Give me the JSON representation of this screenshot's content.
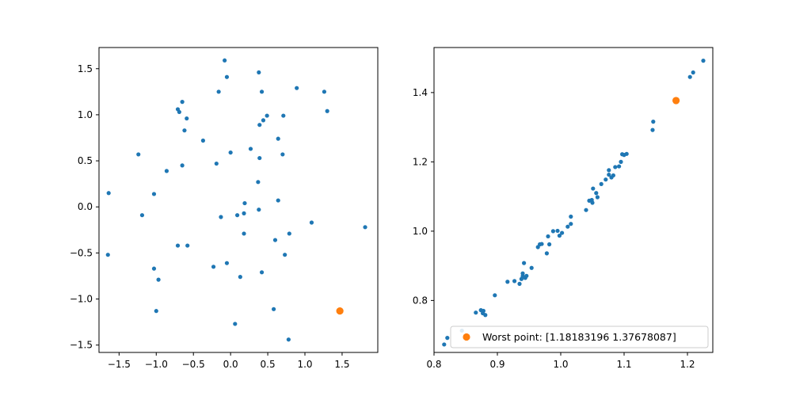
{
  "colors": {
    "points": "#1f77b4",
    "highlight": "#ff7f0e",
    "axes": "#000000",
    "background": "#ffffff"
  },
  "chart_data": [
    {
      "type": "scatter",
      "title": "",
      "xlabel": "",
      "ylabel": "",
      "xlim": [
        -1.77,
        1.98
      ],
      "ylim": [
        -1.58,
        1.73
      ],
      "grid": false,
      "legend": null,
      "xticks": [
        -1.5,
        -1.0,
        -0.5,
        0.0,
        0.5,
        1.0,
        1.5
      ],
      "xtick_labels": [
        "−1.5",
        "−1.0",
        "−0.5",
        "0.0",
        "0.5",
        "1.0",
        "1.5"
      ],
      "yticks": [
        -1.5,
        -1.0,
        -0.5,
        0.0,
        0.5,
        1.0,
        1.5
      ],
      "ytick_labels": [
        "−1.5",
        "−1.0",
        "−0.5",
        "0.0",
        "0.5",
        "1.0",
        "1.5"
      ],
      "series": [
        {
          "role": "points",
          "points": [
            [
              -0.08,
              1.59
            ],
            [
              0.38,
              1.46
            ],
            [
              -0.05,
              1.41
            ],
            [
              0.89,
              1.29
            ],
            [
              -0.16,
              1.25
            ],
            [
              0.42,
              1.25
            ],
            [
              1.26,
              1.25
            ],
            [
              -0.65,
              1.14
            ],
            [
              -0.71,
              1.06
            ],
            [
              -0.69,
              1.03
            ],
            [
              1.3,
              1.04
            ],
            [
              0.49,
              0.99
            ],
            [
              0.71,
              0.99
            ],
            [
              -0.59,
              0.96
            ],
            [
              0.44,
              0.94
            ],
            [
              0.39,
              0.89
            ],
            [
              -0.62,
              0.83
            ],
            [
              0.64,
              0.74
            ],
            [
              -0.37,
              0.72
            ],
            [
              0.27,
              0.63
            ],
            [
              0.0,
              0.59
            ],
            [
              -1.24,
              0.57
            ],
            [
              0.7,
              0.57
            ],
            [
              0.39,
              0.53
            ],
            [
              -0.19,
              0.47
            ],
            [
              -0.65,
              0.45
            ],
            [
              -0.86,
              0.39
            ],
            [
              0.37,
              0.27
            ],
            [
              -1.64,
              0.15
            ],
            [
              -1.03,
              0.14
            ],
            [
              0.64,
              0.07
            ],
            [
              0.19,
              0.04
            ],
            [
              0.38,
              -0.03
            ],
            [
              0.18,
              -0.07
            ],
            [
              -1.19,
              -0.09
            ],
            [
              0.09,
              -0.09
            ],
            [
              -0.13,
              -0.11
            ],
            [
              1.09,
              -0.17
            ],
            [
              1.81,
              -0.22
            ],
            [
              0.18,
              -0.29
            ],
            [
              0.79,
              -0.29
            ],
            [
              0.6,
              -0.36
            ],
            [
              -0.71,
              -0.42
            ],
            [
              -0.58,
              -0.42
            ],
            [
              -1.65,
              -0.52
            ],
            [
              0.73,
              -0.52
            ],
            [
              -0.05,
              -0.61
            ],
            [
              -0.23,
              -0.65
            ],
            [
              -1.03,
              -0.67
            ],
            [
              0.42,
              -0.71
            ],
            [
              0.13,
              -0.76
            ],
            [
              -0.97,
              -0.79
            ],
            [
              -1.0,
              -1.13
            ],
            [
              0.58,
              -1.11
            ],
            [
              0.06,
              -1.27
            ],
            [
              0.78,
              -1.44
            ]
          ]
        },
        {
          "role": "highlight",
          "points": [
            [
              1.47,
              -1.13
            ]
          ]
        }
      ]
    },
    {
      "type": "scatter",
      "title": "",
      "xlabel": "",
      "ylabel": "",
      "xlim": [
        0.8,
        1.24
      ],
      "ylim": [
        0.65,
        1.53
      ],
      "grid": false,
      "legend": "lower-right",
      "xticks": [
        0.8,
        0.9,
        1.0,
        1.1,
        1.2
      ],
      "xtick_labels": [
        "0.8",
        "0.9",
        "1.0",
        "1.1",
        "1.2"
      ],
      "yticks": [
        0.8,
        1.0,
        1.2,
        1.4
      ],
      "ytick_labels": [
        "0.8",
        "1.0",
        "1.2",
        "1.4"
      ],
      "series": [
        {
          "role": "points",
          "points": [
            [
              0.816,
              0.673
            ],
            [
              0.821,
              0.692
            ],
            [
              0.844,
              0.713
            ],
            [
              0.866,
              0.765
            ],
            [
              0.874,
              0.772
            ],
            [
              0.878,
              0.77
            ],
            [
              0.877,
              0.763
            ],
            [
              0.881,
              0.758
            ],
            [
              0.896,
              0.815
            ],
            [
              0.916,
              0.854
            ],
            [
              0.927,
              0.856
            ],
            [
              0.935,
              0.848
            ],
            [
              0.938,
              0.862
            ],
            [
              0.94,
              0.87
            ],
            [
              0.94,
              0.878
            ],
            [
              0.944,
              0.865
            ],
            [
              0.946,
              0.871
            ],
            [
              0.942,
              0.908
            ],
            [
              0.954,
              0.894
            ],
            [
              0.964,
              0.954
            ],
            [
              0.967,
              0.962
            ],
            [
              0.97,
              0.963
            ],
            [
              0.978,
              0.936
            ],
            [
              0.98,
              0.985
            ],
            [
              0.982,
              0.962
            ],
            [
              0.988,
              1.0
            ],
            [
              0.995,
              1.001
            ],
            [
              0.998,
              0.987
            ],
            [
              1.002,
              0.995
            ],
            [
              1.011,
              1.013
            ],
            [
              1.016,
              1.021
            ],
            [
              1.016,
              1.042
            ],
            [
              1.04,
              1.061
            ],
            [
              1.045,
              1.088
            ],
            [
              1.049,
              1.09
            ],
            [
              1.05,
              1.082
            ],
            [
              1.051,
              1.123
            ],
            [
              1.056,
              1.11
            ],
            [
              1.058,
              1.098
            ],
            [
              1.064,
              1.136
            ],
            [
              1.071,
              1.149
            ],
            [
              1.076,
              1.163
            ],
            [
              1.076,
              1.176
            ],
            [
              1.08,
              1.155
            ],
            [
              1.083,
              1.161
            ],
            [
              1.086,
              1.185
            ],
            [
              1.092,
              1.187
            ],
            [
              1.095,
              1.2
            ],
            [
              1.097,
              1.222
            ],
            [
              1.1,
              1.22
            ],
            [
              1.104,
              1.223
            ],
            [
              1.145,
              1.292
            ],
            [
              1.146,
              1.316
            ],
            [
              1.204,
              1.445
            ],
            [
              1.209,
              1.458
            ],
            [
              1.225,
              1.492
            ]
          ]
        },
        {
          "role": "highlight",
          "name": "Worst point: [1.18183196 1.37678087]",
          "points": [
            [
              1.182,
              1.377
            ]
          ]
        }
      ]
    }
  ]
}
